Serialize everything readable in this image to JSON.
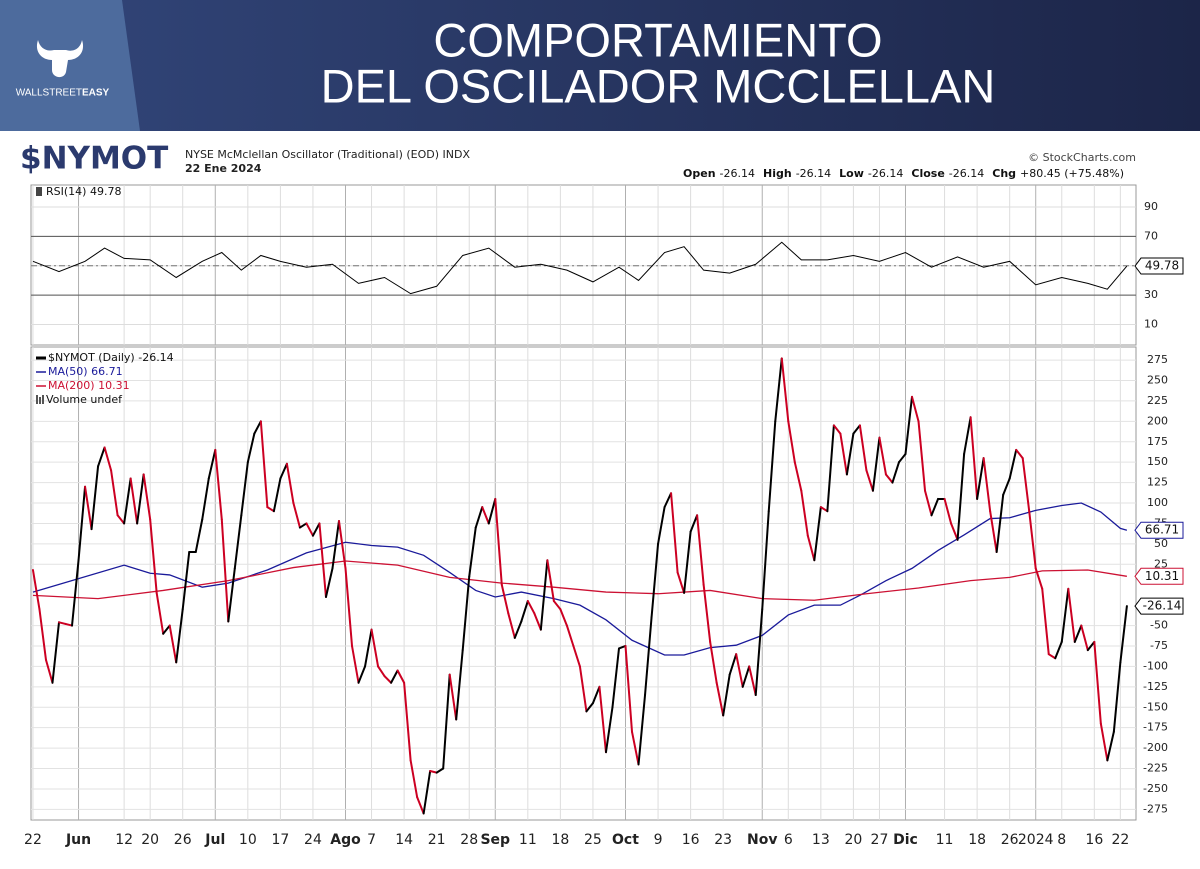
{
  "header": {
    "title_lines": [
      "COMPORTAMIENTO",
      "DEL OSCILADOR MCCLELLAN"
    ],
    "logo": {
      "text1": "WALLSTREET",
      "text2": "EASY"
    }
  },
  "chart_data": {
    "type": "line",
    "symbol": "$NYMOT",
    "title": "NYSE McMclellan Oscillator (Traditional) (EOD) INDX",
    "date": "22 Ene 2024",
    "source": "© StockCharts.com",
    "quote": [
      {
        "label": "Open",
        "value": "-26.14"
      },
      {
        "label": "High",
        "value": "-26.14"
      },
      {
        "label": "Low",
        "value": "-26.14"
      },
      {
        "label": "Close",
        "value": "-26.14"
      },
      {
        "label": "Chg",
        "value": "+80.45 (+75.48%)"
      }
    ],
    "xlim": [
      -0.3,
      169.4
    ],
    "xticks": [
      {
        "value": 0,
        "label": "22"
      },
      {
        "value": 7,
        "label": "Jun"
      },
      {
        "value": 14,
        "label": "12"
      },
      {
        "value": 18,
        "label": "20"
      },
      {
        "value": 23,
        "label": "26"
      },
      {
        "value": 28,
        "label": "Jul"
      },
      {
        "value": 33,
        "label": "10"
      },
      {
        "value": 38,
        "label": "17"
      },
      {
        "value": 43,
        "label": "24"
      },
      {
        "value": 48,
        "label": "Ago"
      },
      {
        "value": 52,
        "label": "7"
      },
      {
        "value": 57,
        "label": "14"
      },
      {
        "value": 62,
        "label": "21"
      },
      {
        "value": 67,
        "label": "28"
      },
      {
        "value": 71,
        "label": "Sep"
      },
      {
        "value": 76,
        "label": "11"
      },
      {
        "value": 81,
        "label": "18"
      },
      {
        "value": 86,
        "label": "25"
      },
      {
        "value": 91,
        "label": "Oct"
      },
      {
        "value": 96,
        "label": "9"
      },
      {
        "value": 101,
        "label": "16"
      },
      {
        "value": 106,
        "label": "23"
      },
      {
        "value": 112,
        "label": "Nov"
      },
      {
        "value": 116,
        "label": "6"
      },
      {
        "value": 121,
        "label": "13"
      },
      {
        "value": 126,
        "label": "20"
      },
      {
        "value": 130,
        "label": "27"
      },
      {
        "value": 134,
        "label": "Dic"
      },
      {
        "value": 140,
        "label": "11"
      },
      {
        "value": 145,
        "label": "18"
      },
      {
        "value": 150,
        "label": "26"
      },
      {
        "value": 154,
        "label": "2024"
      },
      {
        "value": 158,
        "label": "8"
      },
      {
        "value": 163,
        "label": "16"
      },
      {
        "value": 167,
        "label": "22"
      }
    ],
    "ylim": [
      -288,
      291
    ],
    "yticks": [
      275,
      250,
      225,
      200,
      175,
      150,
      125,
      100,
      75,
      50,
      25,
      -50,
      -75,
      -100,
      -125,
      -150,
      -175,
      -200,
      -225,
      -250,
      -275
    ],
    "grid": true,
    "series": [
      {
        "name": "$NYMOT (Daily) -26.14",
        "color": "#000000",
        "down_color": "#cc0022",
        "values": [
          18,
          -30,
          -92,
          -120,
          -46,
          -48,
          -50,
          30,
          120,
          68,
          145,
          168,
          140,
          85,
          75,
          130,
          75,
          135,
          80,
          -10,
          -60,
          -50,
          -95,
          -30,
          40,
          40,
          80,
          130,
          165,
          80,
          -45,
          20,
          85,
          150,
          185,
          200,
          95,
          90,
          130,
          148,
          100,
          70,
          75,
          60,
          75,
          -15,
          20,
          78,
          20,
          -75,
          -120,
          -100,
          -55,
          -100,
          -112,
          -120,
          -105,
          -120,
          -215,
          -260,
          -280,
          -228,
          -230,
          -225,
          -110,
          -165,
          -80,
          10,
          70,
          95,
          75,
          105,
          0,
          -35,
          -65,
          -45,
          -20,
          -35,
          -55,
          30,
          -20,
          -30,
          -50,
          -75,
          -100,
          -155,
          -145,
          -125,
          -205,
          -150,
          -78,
          -75,
          -180,
          -220,
          -135,
          -40,
          50,
          95,
          112,
          15,
          -10,
          65,
          85,
          0,
          -70,
          -120,
          -160,
          -110,
          -85,
          -125,
          -100,
          -135,
          -30,
          90,
          200,
          277,
          200,
          150,
          115,
          60,
          30,
          95,
          90,
          195,
          185,
          135,
          185,
          195,
          140,
          115,
          180,
          135,
          125,
          150,
          160,
          230,
          200,
          115,
          85,
          105,
          105,
          75,
          55,
          160,
          205,
          105,
          155,
          90,
          40,
          110,
          130,
          165,
          155,
          90,
          20,
          -5,
          -85,
          -90,
          -70,
          -5,
          -70,
          -50,
          -80,
          -70,
          -170,
          -215,
          -180,
          -95,
          -26.14
        ]
      },
      {
        "name": "MA(50) 66.71",
        "color": "#1a1a9a",
        "x": [
          0,
          14,
          18,
          21,
          26,
          30,
          36,
          42,
          48,
          52,
          56,
          60,
          64,
          68,
          71,
          75,
          80,
          84,
          88,
          92,
          97,
          100,
          104,
          108,
          112,
          116,
          120,
          124,
          127,
          131,
          135,
          139,
          143,
          147,
          150,
          154,
          158,
          161,
          164,
          167,
          168
        ],
        "values": [
          -9,
          24,
          14,
          12,
          -3,
          2,
          18,
          39,
          52,
          48,
          46,
          36,
          15,
          -7,
          -15,
          -9,
          -17,
          -25,
          -43,
          -68,
          -86,
          -86,
          -77,
          -74,
          -62,
          -37,
          -25,
          -25,
          -13,
          5,
          20,
          42,
          61,
          81,
          82,
          91,
          97,
          100,
          89,
          69,
          66.71
        ]
      },
      {
        "name": "MA(200) 10.31",
        "color": "#cc1133",
        "x": [
          0,
          10,
          20,
          30,
          40,
          48,
          56,
          64,
          72,
          80,
          88,
          96,
          104,
          112,
          120,
          128,
          136,
          144,
          150,
          155,
          162,
          168
        ],
        "values": [
          -13,
          -17,
          -7,
          5,
          21,
          29,
          24,
          9,
          2,
          -3,
          -9,
          -11,
          -7,
          -17,
          -19,
          -11,
          -4,
          5,
          9,
          17,
          18,
          10.31
        ]
      }
    ],
    "legend_extra": "Volume undef",
    "rsi": {
      "name": "RSI(14) 49.78",
      "color": "#000000",
      "x": [
        0,
        4,
        8,
        11,
        14,
        18,
        22,
        26,
        29,
        32,
        35,
        38,
        42,
        46,
        50,
        54,
        58,
        62,
        66,
        70,
        74,
        78,
        82,
        86,
        90,
        93,
        97,
        100,
        103,
        107,
        111,
        115,
        118,
        122,
        126,
        130,
        134,
        138,
        142,
        146,
        150,
        154,
        158,
        162,
        165,
        168
      ],
      "values": [
        53,
        46,
        53,
        62,
        55,
        54,
        42,
        53,
        59,
        47,
        57,
        53,
        49,
        51,
        38,
        42,
        31,
        36,
        57,
        62,
        49,
        51,
        47,
        39,
        49,
        40,
        59,
        63,
        47,
        45,
        51,
        66,
        54,
        54,
        57,
        53,
        59,
        49,
        56,
        49,
        53,
        37,
        42,
        38,
        34,
        49.78
      ],
      "ylim": [
        -4,
        105
      ],
      "yticks": [
        10,
        30,
        50,
        70,
        90
      ],
      "bands": [
        30,
        70
      ],
      "mid": 50
    }
  }
}
